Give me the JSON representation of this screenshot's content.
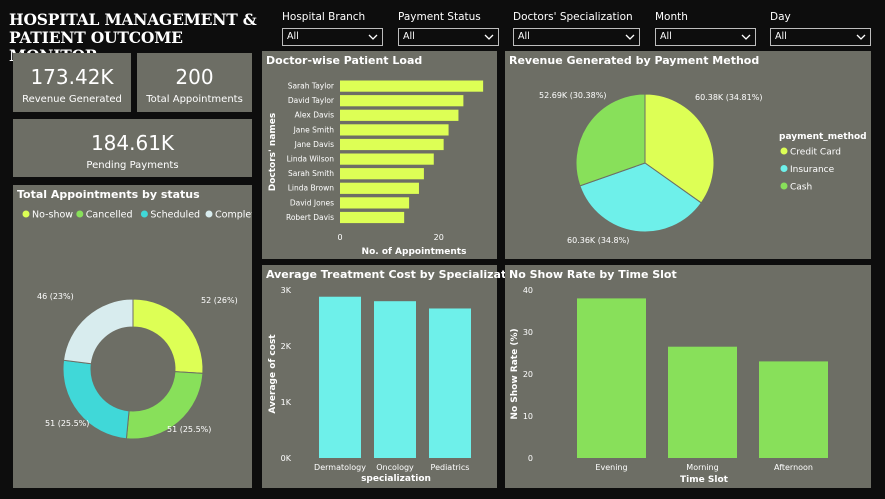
{
  "header": {
    "title_line1": "HOSPITAL MANAGEMENT &",
    "title_line2": "PATIENT OUTCOME MONITOR"
  },
  "filters": [
    {
      "label": "Hospital Branch",
      "value": "All"
    },
    {
      "label": "Payment Status",
      "value": "All"
    },
    {
      "label": "Doctors' Specialization",
      "value": "All"
    },
    {
      "label": "Month",
      "value": "All"
    },
    {
      "label": "Day",
      "value": "All"
    }
  ],
  "kpis": {
    "revenue": {
      "value": "173.42K",
      "label": "Revenue Generated"
    },
    "appointments": {
      "value": "200",
      "label": "Total Appointments"
    },
    "pending": {
      "value": "184.61K",
      "label": "Pending Payments"
    }
  },
  "colors": {
    "lime": "#ddff55",
    "green": "#88e05a",
    "cyan": "#6ef0ea",
    "teal": "#40d8d8",
    "pale": "#d8ecee",
    "card": "#6d6e65"
  },
  "chart_data": [
    {
      "id": "status",
      "type": "donut",
      "title": "Total Appointments by status",
      "legend": [
        "No-show",
        "Cancelled",
        "Scheduled",
        "Completed"
      ],
      "labels": [
        "No-show",
        "Cancelled",
        "Scheduled",
        "Completed"
      ],
      "values": [
        52,
        51,
        51,
        46
      ],
      "data_labels": [
        "52 (26%)",
        "51 (25.5%)",
        "51 (25.5%)",
        "46 (23%)"
      ],
      "colors": [
        "#ddff55",
        "#88e05a",
        "#40d8d8",
        "#d8ecee"
      ]
    },
    {
      "id": "doctors",
      "type": "bar",
      "orientation": "horizontal",
      "title": "Doctor-wise Patient Load",
      "categories": [
        "Sarah Taylor",
        "David Taylor",
        "Alex Davis",
        "Jane Smith",
        "Jane Davis",
        "Linda Wilson",
        "Sarah Smith",
        "Linda Brown",
        "David Jones",
        "Robert Davis"
      ],
      "values": [
        29,
        25,
        24,
        22,
        21,
        19,
        17,
        16,
        14,
        13
      ],
      "xlabel": "No. of Appointments",
      "ylabel": "Doctors' names",
      "xticks": [
        "0",
        "20"
      ],
      "xlim": [
        0,
        31
      ],
      "color": "#ddff55"
    },
    {
      "id": "payment",
      "type": "pie",
      "title": "Revenue Generated by Payment Method",
      "legend_title": "payment_method",
      "legend": [
        "Credit Card",
        "Insurance",
        "Cash"
      ],
      "labels": [
        "Credit Card",
        "Insurance",
        "Cash"
      ],
      "values": [
        60.38,
        60.36,
        52.69
      ],
      "data_labels": [
        "60.38K (34.81%)",
        "60.36K (34.8%)",
        "52.69K (30.38%)"
      ],
      "colors": [
        "#ddff55",
        "#6ef0ea",
        "#88e05a"
      ]
    },
    {
      "id": "treatment",
      "type": "bar",
      "title": "Average Treatment Cost by Specialization",
      "categories": [
        "Dermatology",
        "Oncology",
        "Pediatrics"
      ],
      "values": [
        2880,
        2800,
        2670
      ],
      "xlabel": "specialization",
      "ylabel": "Average of cost",
      "yticks": [
        "0K",
        "1K",
        "2K",
        "3K"
      ],
      "ylim": [
        0,
        3000
      ],
      "color": "#6ef0ea"
    },
    {
      "id": "noshow",
      "type": "bar",
      "title": "No Show Rate by Time Slot",
      "categories": [
        "Evening",
        "Morning",
        "Afternoon"
      ],
      "values": [
        38,
        26.5,
        23
      ],
      "xlabel": "Time Slot",
      "ylabel": "No Show Rate (%)",
      "yticks": [
        "0",
        "10",
        "20",
        "30",
        "40"
      ],
      "ylim": [
        0,
        40
      ],
      "color": "#88e05a"
    }
  ]
}
